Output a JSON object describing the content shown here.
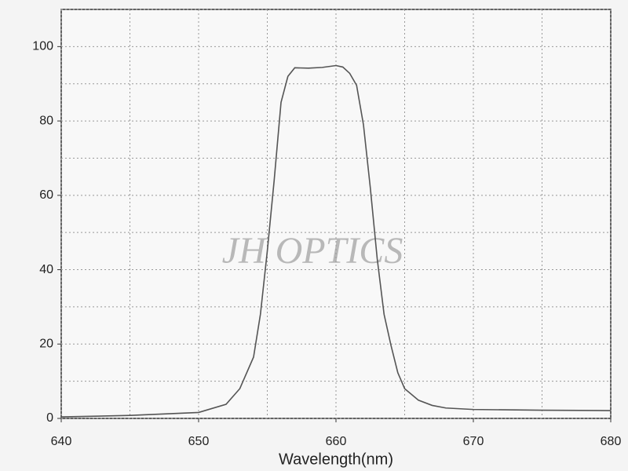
{
  "chart_data": {
    "type": "line",
    "x_label": "Wavelength(nm)",
    "annotation": "JH OPTICS",
    "x": [
      640,
      645,
      650,
      652,
      653,
      654,
      654.5,
      655,
      655.5,
      656,
      656.5,
      657,
      658,
      659,
      660,
      660.5,
      661,
      661.5,
      662,
      662.5,
      663,
      663.5,
      664,
      664.5,
      665,
      666,
      667,
      668,
      670,
      675,
      680
    ],
    "series": [
      {
        "color": "#555555",
        "values": [
          0.4,
          0.8,
          1.6,
          3.8,
          8,
          16.5,
          28,
          45,
          64,
          85,
          92,
          94.3,
          94.2,
          94.4,
          94.9,
          94.5,
          92.8,
          89.6,
          79,
          62,
          43,
          28,
          19.7,
          12.3,
          8,
          4.9,
          3.5,
          2.8,
          2.4,
          2.2,
          2.1
        ]
      }
    ],
    "xlim": [
      640,
      680
    ],
    "ylim": [
      0,
      110
    ],
    "xticks": [
      640,
      650,
      660,
      670,
      680
    ],
    "yticks": [
      0,
      20,
      40,
      60,
      80,
      100
    ],
    "minor_xticks": [
      645,
      655,
      665,
      675
    ],
    "minor_yticks": [
      10,
      30,
      50,
      70,
      90,
      110
    ],
    "grid": true
  }
}
